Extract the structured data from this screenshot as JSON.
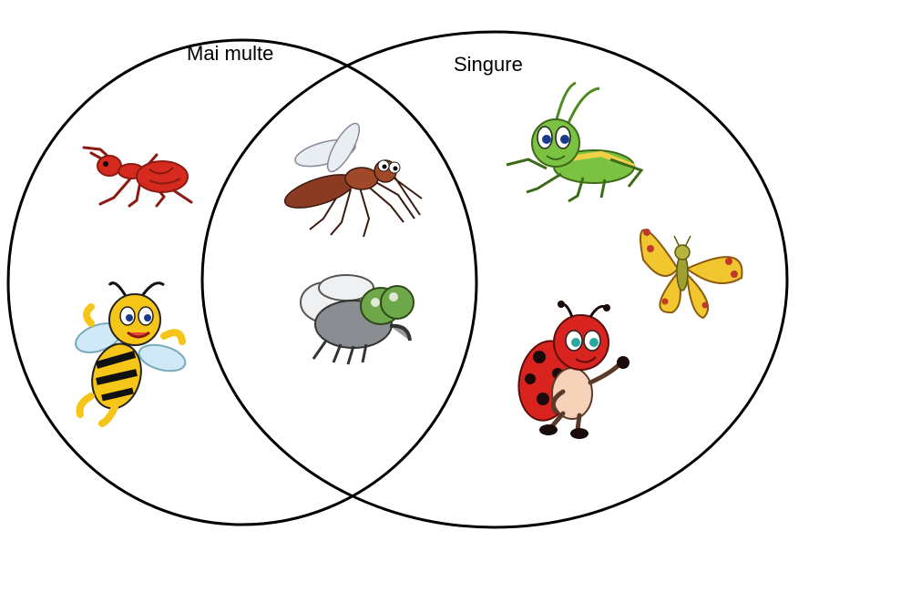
{
  "sets": {
    "left": {
      "label": "Mai multe"
    },
    "right": {
      "label": "Singure"
    }
  },
  "items": {
    "left_only": [
      "ant-icon",
      "bee-icon"
    ],
    "both": [
      "mosquito-icon",
      "fly-icon"
    ],
    "right_only": [
      "grasshopper-icon",
      "butterfly-icon",
      "ladybug-icon"
    ]
  },
  "colors": {
    "outline": "#000000",
    "ant": "#d62a1e",
    "bee_yellow": "#f5c518",
    "mosquito": "#8a3b22",
    "fly_eye": "#6fa84a",
    "grasshopper": "#7cc242",
    "butterfly": "#f2c62e",
    "ladybug": "#d8231f"
  }
}
